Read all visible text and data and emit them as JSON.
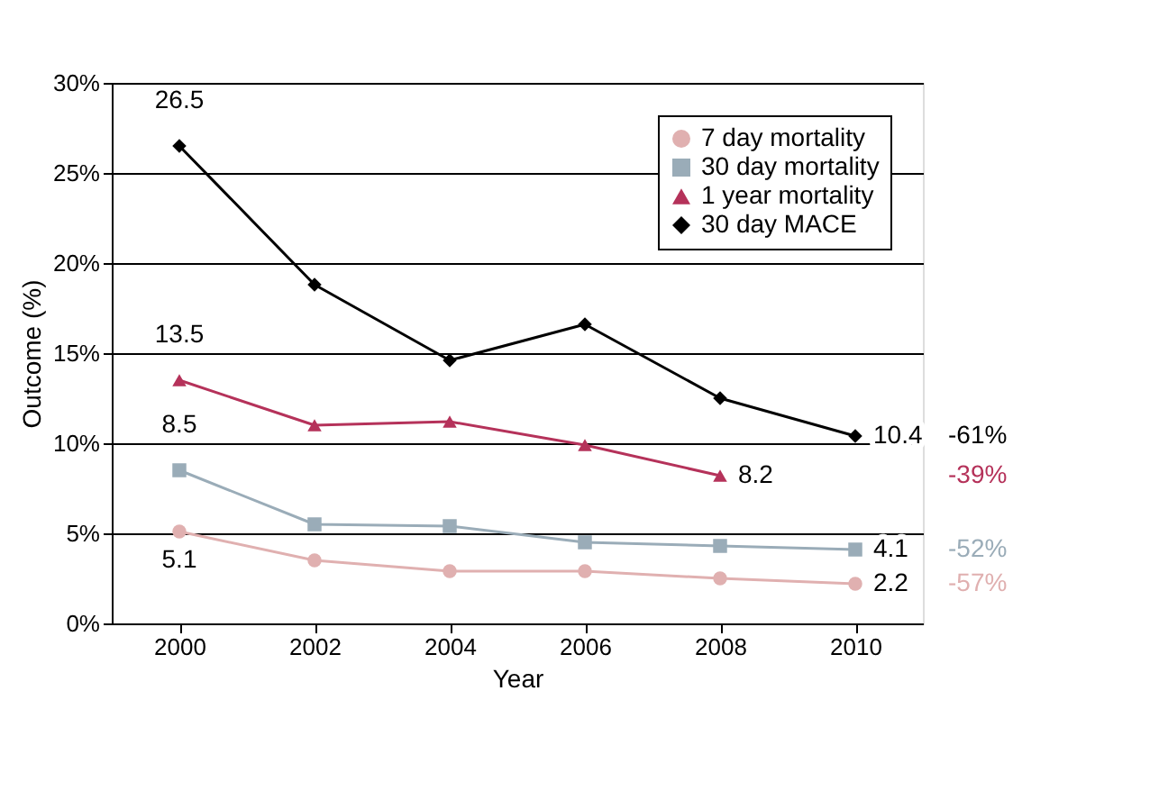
{
  "chart_data": {
    "type": "line",
    "xlabel": "Year",
    "ylabel": "Outcome (%)",
    "categories": [
      "2000",
      "2002",
      "2004",
      "2006",
      "2008",
      "2010"
    ],
    "series": [
      {
        "name": "7 day mortality",
        "color": "#e0b0b0",
        "marker": "circle",
        "values": [
          5.1,
          3.5,
          2.9,
          2.9,
          2.5,
          2.2
        ],
        "value_labels": [
          "5.1",
          null,
          null,
          null,
          null,
          "2.2"
        ]
      },
      {
        "name": "30 day mortality",
        "color": "#9aacb8",
        "marker": "square",
        "values": [
          8.5,
          5.5,
          5.4,
          4.5,
          4.3,
          4.1
        ],
        "value_labels": [
          "8.5",
          null,
          null,
          null,
          null,
          "4.1"
        ]
      },
      {
        "name": "1 year mortality",
        "color": "#b5325a",
        "marker": "triangle",
        "values": [
          13.5,
          11.0,
          11.2,
          9.9,
          8.2,
          null
        ],
        "value_labels": [
          "13.5",
          null,
          null,
          null,
          "8.2",
          null
        ]
      },
      {
        "name": "30 day MACE",
        "color": "#000000",
        "marker": "diamond",
        "values": [
          26.5,
          18.8,
          14.6,
          16.6,
          12.5,
          10.4
        ],
        "value_labels": [
          "26.5",
          null,
          null,
          null,
          null,
          "10.4"
        ]
      }
    ],
    "ylim": [
      0,
      30
    ],
    "yticks": [
      {
        "value": 0,
        "label": "0%"
      },
      {
        "value": 5,
        "label": "5%"
      },
      {
        "value": 10,
        "label": "10%"
      },
      {
        "value": 15,
        "label": "15%"
      },
      {
        "value": 20,
        "label": "20%"
      },
      {
        "value": 25,
        "label": "25%"
      },
      {
        "value": 30,
        "label": "30%"
      }
    ],
    "grid": "y",
    "legend": "top right",
    "annotations": [
      "-57%",
      "-52%",
      "-39%",
      "-61%"
    ]
  }
}
